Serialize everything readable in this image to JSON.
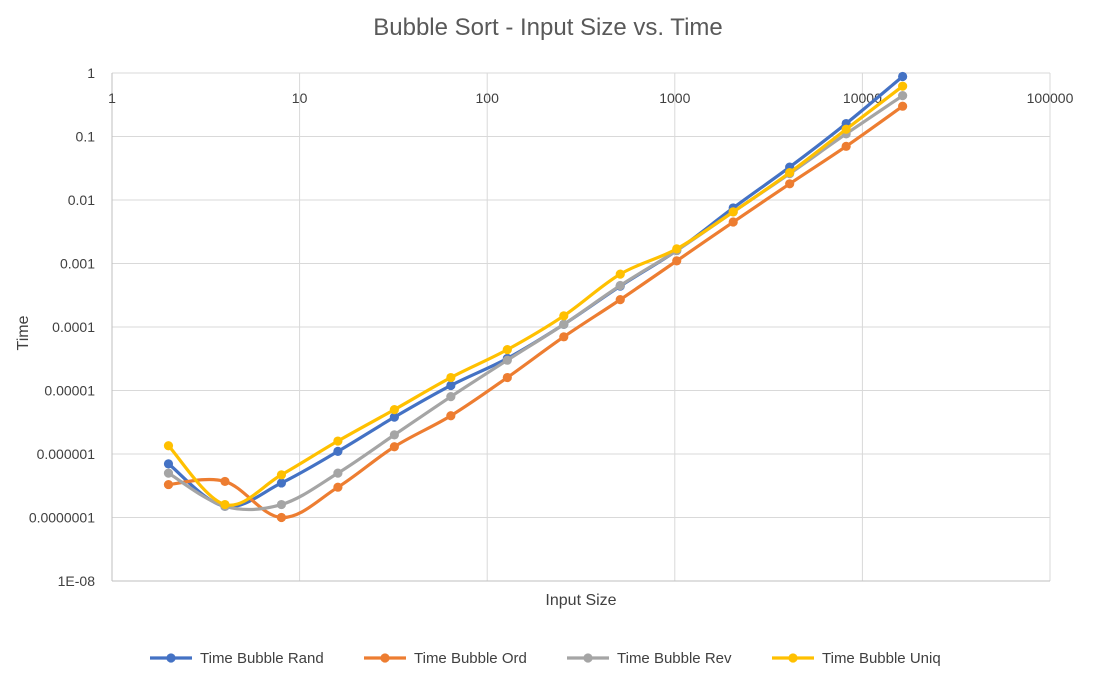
{
  "chart_data": {
    "type": "line",
    "title": "Bubble Sort - Input Size vs. Time",
    "xlabel": "Input Size",
    "ylabel": "Time",
    "x_scale": "log",
    "y_scale": "log",
    "xlim": [
      1,
      100000
    ],
    "ylim": [
      1e-08,
      1
    ],
    "x_ticks": [
      {
        "value": 1,
        "label": "1"
      },
      {
        "value": 10,
        "label": "10"
      },
      {
        "value": 100,
        "label": "100"
      },
      {
        "value": 1000,
        "label": "1000"
      },
      {
        "value": 10000,
        "label": "10000"
      },
      {
        "value": 100000,
        "label": "100000"
      }
    ],
    "y_ticks": [
      {
        "value": 1,
        "label": "1"
      },
      {
        "value": 0.1,
        "label": "0.1"
      },
      {
        "value": 0.01,
        "label": "0.01"
      },
      {
        "value": 0.001,
        "label": "0.001"
      },
      {
        "value": 0.0001,
        "label": "0.0001"
      },
      {
        "value": 1e-05,
        "label": "0.00001"
      },
      {
        "value": 1e-06,
        "label": "0.000001"
      },
      {
        "value": 1e-07,
        "label": "0.0000001"
      },
      {
        "value": 1e-08,
        "label": "1E-08"
      }
    ],
    "grid": true,
    "legend_position": "bottom",
    "smoothed": true,
    "x": [
      2,
      4,
      8,
      16,
      32,
      64,
      128,
      256,
      512,
      1024,
      2048,
      4096,
      8192,
      16384
    ],
    "series": [
      {
        "name": "Time Bubble Rand",
        "color": "#4472C4",
        "values": [
          7e-07,
          1.5e-07,
          3.5e-07,
          1.1e-06,
          3.8e-06,
          1.2e-05,
          3.2e-05,
          0.00011,
          0.00044,
          0.0016,
          0.0075,
          0.033,
          0.16,
          0.88
        ]
      },
      {
        "name": "Time Bubble Ord",
        "color": "#ED7D31",
        "values": [
          3.3e-07,
          3.7e-07,
          1e-07,
          3e-07,
          1.3e-06,
          4e-06,
          1.6e-05,
          7e-05,
          0.00027,
          0.0011,
          0.0045,
          0.018,
          0.07,
          0.3
        ]
      },
      {
        "name": "Time Bubble Rev",
        "color": "#A5A5A5",
        "values": [
          5e-07,
          1.5e-07,
          1.6e-07,
          5e-07,
          2e-06,
          8e-06,
          3e-05,
          0.00011,
          0.00045,
          0.0016,
          0.0065,
          0.026,
          0.11,
          0.44
        ]
      },
      {
        "name": "Time Bubble Uniq",
        "color": "#FFC000",
        "values": [
          1.35e-06,
          1.6e-07,
          4.7e-07,
          1.6e-06,
          5e-06,
          1.6e-05,
          4.4e-05,
          0.00015,
          0.00068,
          0.0017,
          0.0065,
          0.027,
          0.13,
          0.62
        ]
      }
    ]
  }
}
